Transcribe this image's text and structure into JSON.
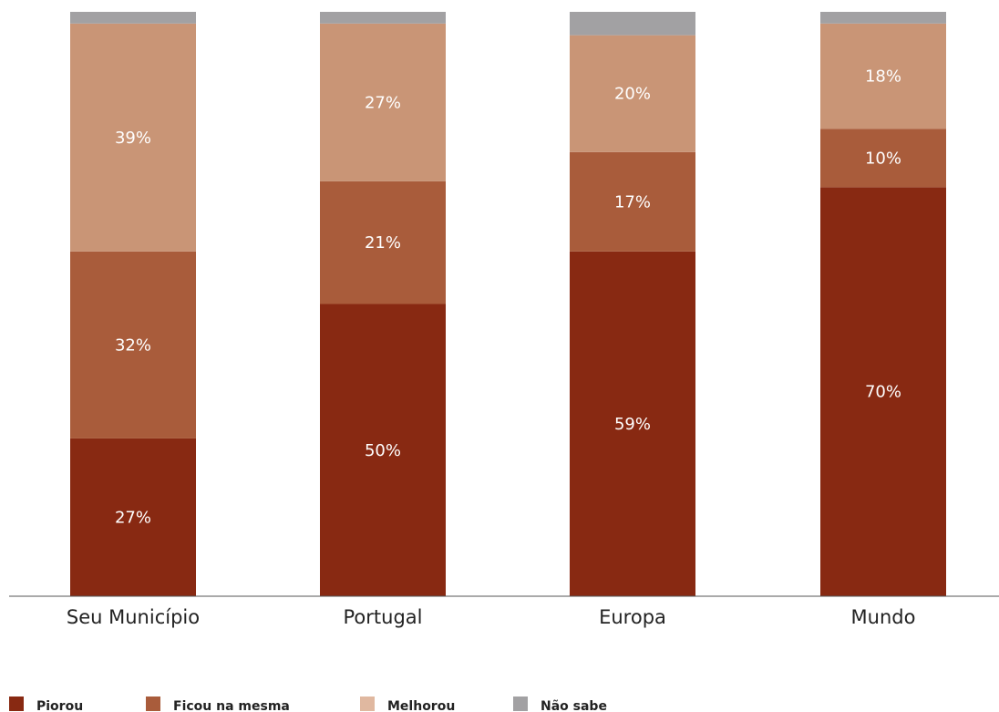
{
  "chart_data": {
    "type": "bar",
    "stacked": true,
    "title": "",
    "xlabel": "",
    "ylabel": "",
    "categories": [
      "Seu Município",
      "Portugal",
      "Europa",
      "Mundo"
    ],
    "ylim": [
      0,
      100
    ],
    "grid": false,
    "legend_position": "bottom-left",
    "series": [
      {
        "name": "Piorou",
        "color": "#882912",
        "values": [
          27,
          50,
          59,
          70
        ]
      },
      {
        "name": "Ficou na mesma",
        "color": "#a95c3b",
        "values": [
          32,
          21,
          17,
          10
        ]
      },
      {
        "name": "Melhorou",
        "color": "#c99576",
        "values": [
          39,
          27,
          20,
          18
        ]
      },
      {
        "name": "Não sabe",
        "color": "#a2a1a3",
        "values": [
          2,
          2,
          4,
          2
        ]
      }
    ],
    "data_labels": [
      [
        "27%",
        "50%",
        "59%",
        "70%"
      ],
      [
        "32%",
        "21%",
        "17%",
        "10%"
      ],
      [
        "39%",
        "27%",
        "20%",
        "18%"
      ],
      [
        "",
        "",
        "",
        ""
      ]
    ],
    "legend_swatch_colors": [
      "#882912",
      "#a95c3b",
      "#e0b8a0",
      "#a2a1a3"
    ]
  }
}
